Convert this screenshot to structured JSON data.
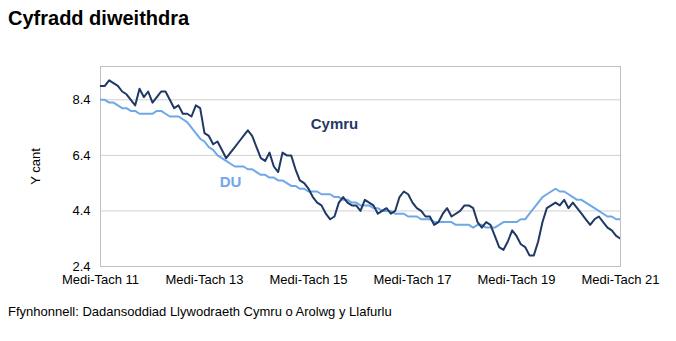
{
  "chart_data": {
    "type": "line",
    "title": "Cyfradd diweithdra",
    "y_label": "Y cant",
    "caption": "Ffynhonnell: Dadansoddiad Llywodraeth Cymru o Arolwg y Llafurlu",
    "categories": [
      "Medi-Tach 11",
      null,
      null,
      null,
      null,
      null,
      null,
      null,
      null,
      null,
      null,
      null,
      null,
      null,
      null,
      null,
      null,
      null,
      null,
      null,
      null,
      null,
      null,
      null,
      "Medi-Tach 13",
      null,
      null,
      null,
      null,
      null,
      null,
      null,
      null,
      null,
      null,
      null,
      null,
      null,
      null,
      null,
      null,
      null,
      null,
      null,
      null,
      null,
      null,
      null,
      "Medi-Tach 15",
      null,
      null,
      null,
      null,
      null,
      null,
      null,
      null,
      null,
      null,
      null,
      null,
      null,
      null,
      null,
      null,
      null,
      null,
      null,
      null,
      null,
      null,
      null,
      "Medi-Tach 17",
      null,
      null,
      null,
      null,
      null,
      null,
      null,
      null,
      null,
      null,
      null,
      null,
      null,
      null,
      null,
      null,
      null,
      null,
      null,
      null,
      null,
      null,
      null,
      "Medi-Tach 19",
      null,
      null,
      null,
      null,
      null,
      null,
      null,
      null,
      null,
      null,
      null,
      null,
      null,
      null,
      null,
      null,
      null,
      null,
      null,
      null,
      null,
      null,
      null,
      "Medi-Tach 21"
    ],
    "series": [
      {
        "name": "Cymru",
        "color": "#1f3864",
        "values": [
          8.9,
          8.9,
          9.1,
          9.0,
          8.9,
          8.7,
          8.6,
          8.4,
          8.2,
          8.8,
          8.5,
          8.7,
          8.3,
          8.5,
          8.7,
          8.7,
          8.4,
          8.1,
          8.2,
          7.9,
          7.9,
          7.8,
          8.2,
          8.1,
          7.2,
          7.1,
          6.8,
          6.9,
          6.6,
          6.3,
          6.5,
          6.7,
          6.9,
          7.1,
          7.3,
          7.1,
          6.7,
          6.3,
          6.2,
          6.5,
          6.0,
          5.8,
          6.5,
          6.4,
          6.4,
          5.9,
          5.5,
          5.4,
          5.2,
          4.9,
          4.7,
          4.6,
          4.3,
          4.1,
          4.2,
          4.7,
          4.9,
          4.7,
          4.6,
          4.6,
          4.4,
          4.8,
          4.7,
          4.6,
          4.3,
          4.4,
          4.5,
          4.3,
          4.4,
          4.9,
          5.1,
          5.0,
          4.7,
          4.5,
          4.4,
          4.2,
          4.2,
          3.9,
          4.0,
          4.3,
          4.5,
          4.2,
          4.3,
          4.4,
          4.6,
          4.6,
          4.5,
          4.0,
          3.8,
          4.0,
          3.9,
          3.5,
          3.1,
          3.0,
          3.3,
          3.7,
          3.5,
          3.2,
          3.1,
          2.8,
          2.8,
          3.3,
          4.0,
          4.5,
          4.6,
          4.7,
          4.6,
          4.8,
          4.5,
          4.7,
          4.5,
          4.3,
          4.1,
          3.9,
          4.1,
          4.2,
          4.0,
          3.8,
          3.7,
          3.5,
          3.4
        ]
      },
      {
        "name": "DU",
        "color": "#6fa8e6",
        "values": [
          8.4,
          8.4,
          8.3,
          8.3,
          8.2,
          8.1,
          8.1,
          8.0,
          8.0,
          7.9,
          7.9,
          7.9,
          7.9,
          8.0,
          8.0,
          7.9,
          7.8,
          7.8,
          7.8,
          7.7,
          7.6,
          7.4,
          7.2,
          7.0,
          6.9,
          6.7,
          6.6,
          6.4,
          6.3,
          6.2,
          6.1,
          6.0,
          6.0,
          6.0,
          5.9,
          5.9,
          5.8,
          5.7,
          5.7,
          5.6,
          5.6,
          5.5,
          5.5,
          5.4,
          5.3,
          5.3,
          5.2,
          5.2,
          5.1,
          5.1,
          5.1,
          5.0,
          5.0,
          5.0,
          4.9,
          4.9,
          4.8,
          4.8,
          4.7,
          4.7,
          4.6,
          4.6,
          4.6,
          4.5,
          4.5,
          4.4,
          4.4,
          4.4,
          4.3,
          4.3,
          4.3,
          4.2,
          4.2,
          4.2,
          4.1,
          4.1,
          4.1,
          4.0,
          4.0,
          4.0,
          4.0,
          4.0,
          3.9,
          3.9,
          3.9,
          3.9,
          3.8,
          3.9,
          3.9,
          3.8,
          3.8,
          3.8,
          3.9,
          4.0,
          4.0,
          4.0,
          4.0,
          4.1,
          4.1,
          4.3,
          4.5,
          4.7,
          4.9,
          5.0,
          5.1,
          5.2,
          5.1,
          5.1,
          5.0,
          4.9,
          4.8,
          4.8,
          4.7,
          4.6,
          4.5,
          4.4,
          4.3,
          4.2,
          4.2,
          4.1,
          4.1
        ]
      }
    ],
    "ylim": [
      2.4,
      9.6
    ],
    "yticks": [
      2.4,
      4.4,
      6.4,
      8.4
    ],
    "grid": true
  }
}
